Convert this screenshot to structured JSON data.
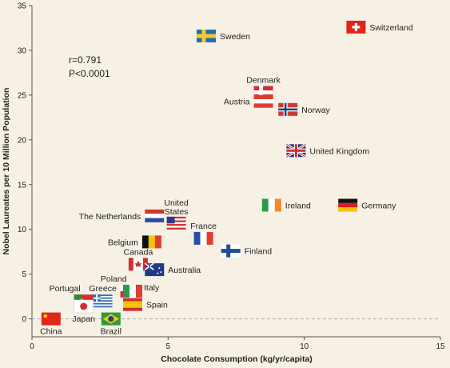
{
  "chart_data": {
    "type": "scatter",
    "xlabel": "Chocolate Consumption (kg/yr/capita)",
    "ylabel": "Nobel Laureates per 10 Million Population",
    "xlim": [
      0,
      15
    ],
    "ylim": [
      -2,
      35
    ],
    "x_ticks": [
      0,
      5,
      10,
      15
    ],
    "y_ticks": [
      0,
      5,
      10,
      15,
      20,
      25,
      30,
      35
    ],
    "grid": false,
    "annotation": [
      "r=0.791",
      "P<0.0001"
    ],
    "points": [
      {
        "label": "Switzerland",
        "x": 11.9,
        "y": 32.6,
        "flag": "switzerland"
      },
      {
        "label": "Sweden",
        "x": 6.4,
        "y": 31.6,
        "flag": "sweden"
      },
      {
        "label": "Denmark",
        "x": 8.5,
        "y": 25.3,
        "flag": "denmark"
      },
      {
        "label": "Austria",
        "x": 8.5,
        "y": 24.3,
        "flag": "austria"
      },
      {
        "label": "Norway",
        "x": 9.4,
        "y": 23.4,
        "flag": "norway"
      },
      {
        "label": "United Kingdom",
        "x": 9.7,
        "y": 18.8,
        "flag": "uk"
      },
      {
        "label": "Ireland",
        "x": 8.8,
        "y": 12.7,
        "flag": "ireland"
      },
      {
        "label": "Germany",
        "x": 11.6,
        "y": 12.7,
        "flag": "germany"
      },
      {
        "label": "United States",
        "x": 5.3,
        "y": 10.7,
        "flag": "usa"
      },
      {
        "label": "The Netherlands",
        "x": 4.5,
        "y": 11.5,
        "flag": "netherlands"
      },
      {
        "label": "France",
        "x": 6.3,
        "y": 9.0,
        "flag": "france"
      },
      {
        "label": "Belgium",
        "x": 4.4,
        "y": 8.6,
        "flag": "belgium"
      },
      {
        "label": "Finland",
        "x": 7.3,
        "y": 7.6,
        "flag": "finland"
      },
      {
        "label": "Canada",
        "x": 3.9,
        "y": 6.1,
        "flag": "canada"
      },
      {
        "label": "Australia",
        "x": 4.5,
        "y": 5.5,
        "flag": "australia"
      },
      {
        "label": "Poland",
        "x": 3.6,
        "y": 3.1,
        "flag": "poland"
      },
      {
        "label": "Italy",
        "x": 3.7,
        "y": 3.1,
        "flag": "italy"
      },
      {
        "label": "Greece",
        "x": 2.6,
        "y": 2.0,
        "flag": "greece"
      },
      {
        "label": "Portugal",
        "x": 1.9,
        "y": 2.0,
        "flag": "portugal"
      },
      {
        "label": "Spain",
        "x": 3.7,
        "y": 1.6,
        "flag": "spain"
      },
      {
        "label": "Japan",
        "x": 1.9,
        "y": 1.4,
        "flag": "japan"
      },
      {
        "label": "China",
        "x": 0.7,
        "y": 0.0,
        "flag": "china"
      },
      {
        "label": "Brazil",
        "x": 2.9,
        "y": 0.0,
        "flag": "brazil"
      }
    ],
    "colors": {
      "background": "#f6f1e4",
      "axis": "#555555",
      "text": "#222222",
      "zero_line": "#aaaaaa"
    }
  }
}
